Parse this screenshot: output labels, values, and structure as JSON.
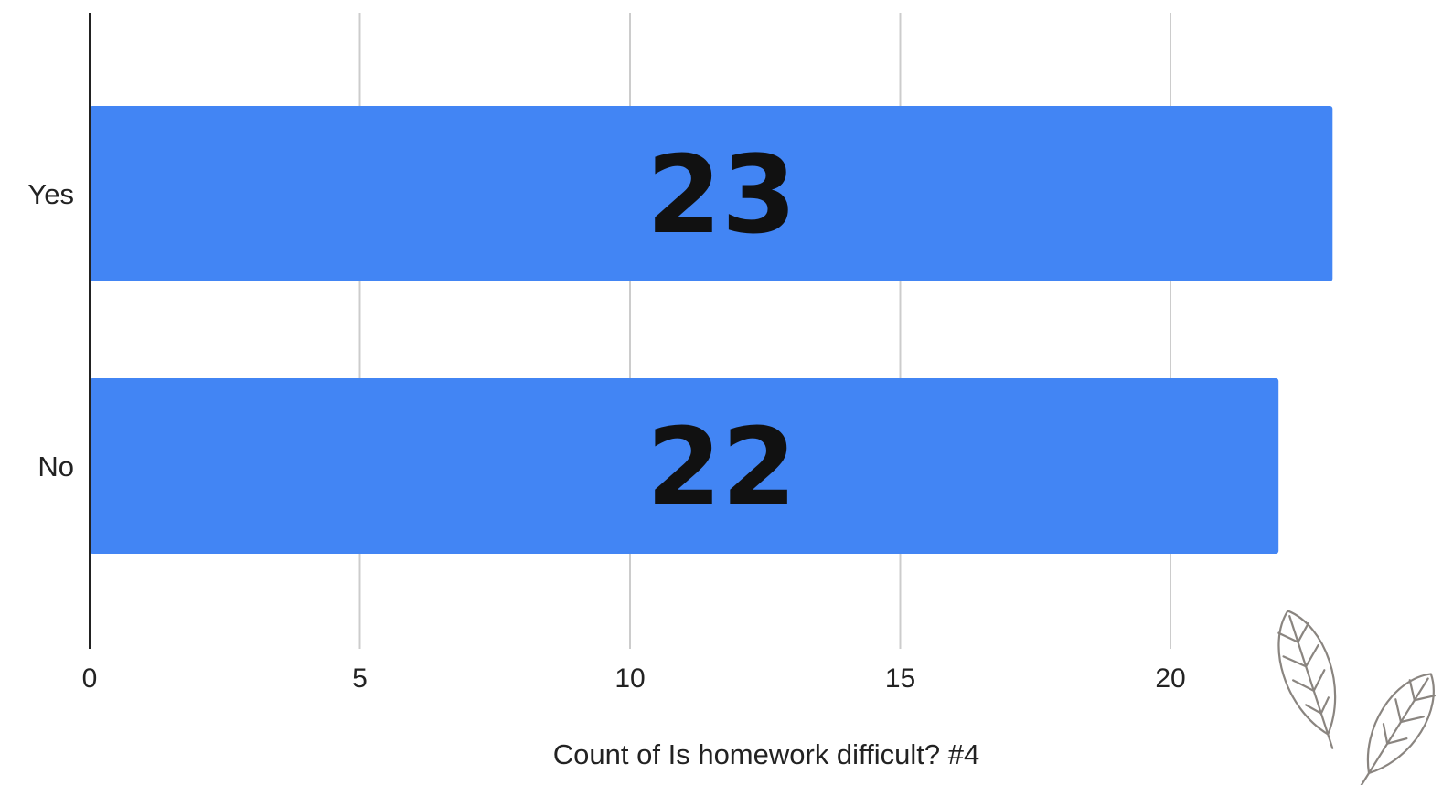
{
  "chart_data": {
    "type": "bar",
    "orientation": "horizontal",
    "categories": [
      "Yes",
      "No"
    ],
    "values": [
      23,
      22
    ],
    "data_labels": [
      "23",
      "22"
    ],
    "xlabel": "Count of Is homework difficult? #4",
    "ylabel": "",
    "title": "",
    "xlim": [
      0,
      23
    ],
    "xticks": [
      0,
      5,
      10,
      15,
      20
    ],
    "xtick_labels": [
      "0",
      "5",
      "10",
      "15",
      "20"
    ],
    "grid": true,
    "legend": "none",
    "colors": {
      "bar": "#4285f4",
      "grid": "#cccccc",
      "axis": "#222222"
    }
  },
  "decoration": {
    "icon": "leaf-sketch-icon"
  }
}
